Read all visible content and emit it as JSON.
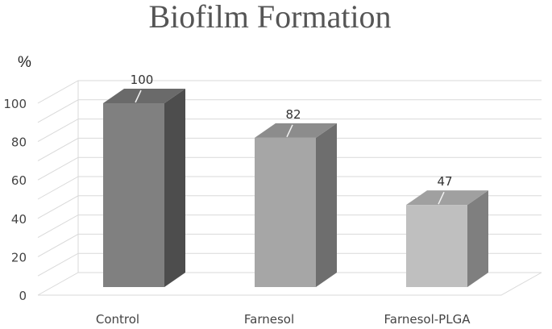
{
  "chart_data": {
    "type": "bar",
    "title": "Biofilm Formation",
    "ylabel": "%",
    "categories": [
      "Control",
      "Farnesol",
      "Farnesol-PLGA"
    ],
    "values": [
      100,
      82,
      47
    ],
    "data_labels": [
      "100",
      "82",
      "47"
    ],
    "ylim": [
      0,
      100
    ],
    "yticks": [
      0,
      20,
      40,
      60,
      80,
      100
    ],
    "grid": true,
    "style": "3d",
    "colors": {
      "bars": [
        "#808080",
        "#a6a6a6",
        "#bfbfbf"
      ],
      "sides": [
        "#4d4d4d",
        "#6e6e6e",
        "#7f7f7f"
      ],
      "tops": [
        "#6a6a6a",
        "#8c8c8c",
        "#a0a0a0"
      ]
    }
  }
}
